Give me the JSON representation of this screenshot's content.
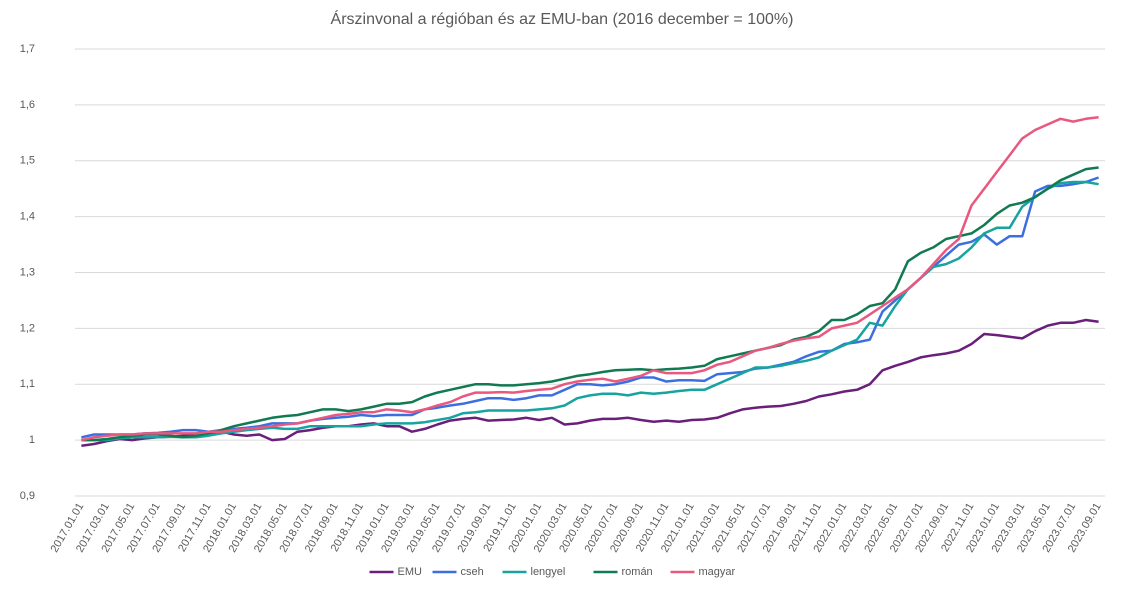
{
  "chart_data": {
    "type": "line",
    "title": "Árszinvonal a régióban és az EMU-ban (2016 december = 100%)",
    "categories": [
      "2017.01.01",
      null,
      "2017.03.01",
      null,
      "2017.05.01",
      null,
      "2017.07.01",
      null,
      "2017.09.01",
      null,
      "2017.11.01",
      null,
      "2018.01.01",
      null,
      "2018.03.01",
      null,
      "2018.05.01",
      null,
      "2018.07.01",
      null,
      "2018.09.01",
      null,
      "2018.11.01",
      null,
      "2019.01.01",
      null,
      "2019.03.01",
      null,
      "2019.05.01",
      null,
      "2019.07.01",
      null,
      "2019.09.01",
      null,
      "2019.11.01",
      null,
      "2020.01.01",
      null,
      "2020.03.01",
      null,
      "2020.05.01",
      null,
      "2020.07.01",
      null,
      "2020.09.01",
      null,
      "2020.11.01",
      null,
      "2021.01.01",
      null,
      "2021.03.01",
      null,
      "2021.05.01",
      null,
      "2021.07.01",
      null,
      "2021.09.01",
      null,
      "2021.11.01",
      null,
      "2022.01.01",
      null,
      "2022.03.01",
      null,
      "2022.05.01",
      null,
      "2022.07.01",
      null,
      "2022.09.01",
      null,
      "2022.11.01",
      null,
      "2023.01.01",
      null,
      "2023.03.01",
      null,
      "2023.05.01",
      null,
      "2023.07.01",
      null,
      "2023.09.01"
    ],
    "series": [
      {
        "name": "EMU",
        "color": "#6a1f7a",
        "values": [
          0.99,
          0.993,
          0.998,
          1.002,
          1.0,
          1.003,
          1.005,
          1.006,
          1.008,
          1.01,
          1.012,
          1.015,
          1.01,
          1.008,
          1.01,
          1.0,
          1.002,
          1.015,
          1.018,
          1.022,
          1.025,
          1.025,
          1.028,
          1.03,
          1.025,
          1.025,
          1.015,
          1.02,
          1.028,
          1.035,
          1.038,
          1.04,
          1.035,
          1.036,
          1.037,
          1.04,
          1.036,
          1.04,
          1.028,
          1.03,
          1.035,
          1.038,
          1.038,
          1.04,
          1.036,
          1.033,
          1.035,
          1.033,
          1.036,
          1.037,
          1.04,
          1.048,
          1.055,
          1.058,
          1.06,
          1.061,
          1.065,
          1.07,
          1.078,
          1.082,
          1.087,
          1.09,
          1.1,
          1.125,
          1.133,
          1.14,
          1.148,
          1.152,
          1.155,
          1.16,
          1.172,
          1.19,
          1.188,
          1.185,
          1.182,
          1.195,
          1.205,
          1.21,
          1.21,
          1.215,
          1.212
        ]
      },
      {
        "name": "cseh",
        "color": "#3b6fe0",
        "values": [
          1.005,
          1.01,
          1.01,
          1.01,
          1.01,
          1.012,
          1.013,
          1.015,
          1.018,
          1.018,
          1.015,
          1.018,
          1.02,
          1.022,
          1.025,
          1.03,
          1.03,
          1.03,
          1.035,
          1.038,
          1.04,
          1.042,
          1.045,
          1.043,
          1.045,
          1.045,
          1.045,
          1.055,
          1.058,
          1.062,
          1.065,
          1.07,
          1.075,
          1.075,
          1.072,
          1.075,
          1.08,
          1.08,
          1.09,
          1.1,
          1.1,
          1.098,
          1.1,
          1.105,
          1.112,
          1.112,
          1.105,
          1.107,
          1.107,
          1.106,
          1.118,
          1.12,
          1.122,
          1.128,
          1.13,
          1.135,
          1.14,
          1.15,
          1.158,
          1.16,
          1.172,
          1.175,
          1.18,
          1.23,
          1.25,
          1.27,
          1.29,
          1.31,
          1.33,
          1.35,
          1.355,
          1.368,
          1.35,
          1.365,
          1.365,
          1.445,
          1.455,
          1.455,
          1.458,
          1.462,
          1.47
        ]
      },
      {
        "name": "lengyel",
        "color": "#17a39f",
        "values": [
          1.0,
          1.0,
          1.0,
          1.003,
          1.005,
          1.005,
          1.005,
          1.006,
          1.005,
          1.005,
          1.008,
          1.012,
          1.015,
          1.018,
          1.02,
          1.022,
          1.02,
          1.02,
          1.025,
          1.025,
          1.025,
          1.025,
          1.025,
          1.028,
          1.03,
          1.03,
          1.03,
          1.032,
          1.036,
          1.04,
          1.048,
          1.05,
          1.053,
          1.053,
          1.053,
          1.053,
          1.055,
          1.057,
          1.062,
          1.075,
          1.08,
          1.083,
          1.083,
          1.08,
          1.085,
          1.083,
          1.085,
          1.088,
          1.09,
          1.09,
          1.1,
          1.11,
          1.12,
          1.13,
          1.13,
          1.133,
          1.138,
          1.142,
          1.148,
          1.16,
          1.17,
          1.18,
          1.21,
          1.205,
          1.24,
          1.27,
          1.29,
          1.31,
          1.315,
          1.325,
          1.345,
          1.37,
          1.38,
          1.38,
          1.418,
          1.435,
          1.45,
          1.46,
          1.462,
          1.462,
          1.458
        ]
      },
      {
        "name": "román",
        "color": "#117a52",
        "values": [
          1.0,
          1.0,
          1.002,
          1.005,
          1.008,
          1.01,
          1.01,
          1.008,
          1.005,
          1.008,
          1.012,
          1.018,
          1.025,
          1.03,
          1.035,
          1.04,
          1.043,
          1.045,
          1.05,
          1.055,
          1.055,
          1.052,
          1.055,
          1.06,
          1.065,
          1.065,
          1.068,
          1.078,
          1.085,
          1.09,
          1.095,
          1.1,
          1.1,
          1.098,
          1.098,
          1.1,
          1.102,
          1.105,
          1.11,
          1.115,
          1.118,
          1.122,
          1.125,
          1.126,
          1.127,
          1.125,
          1.127,
          1.128,
          1.13,
          1.133,
          1.145,
          1.15,
          1.155,
          1.16,
          1.165,
          1.17,
          1.18,
          1.185,
          1.195,
          1.215,
          1.215,
          1.225,
          1.24,
          1.245,
          1.27,
          1.32,
          1.335,
          1.345,
          1.36,
          1.365,
          1.37,
          1.385,
          1.405,
          1.42,
          1.425,
          1.435,
          1.45,
          1.465,
          1.475,
          1.485,
          1.488
        ]
      },
      {
        "name": "magyar",
        "color": "#e8587f",
        "values": [
          1.0,
          1.005,
          1.008,
          1.01,
          1.01,
          1.012,
          1.012,
          1.012,
          1.012,
          1.012,
          1.015,
          1.015,
          1.018,
          1.02,
          1.022,
          1.025,
          1.028,
          1.03,
          1.035,
          1.04,
          1.045,
          1.047,
          1.05,
          1.05,
          1.055,
          1.053,
          1.05,
          1.055,
          1.062,
          1.068,
          1.078,
          1.085,
          1.085,
          1.086,
          1.085,
          1.088,
          1.09,
          1.092,
          1.1,
          1.105,
          1.108,
          1.11,
          1.105,
          1.11,
          1.115,
          1.125,
          1.12,
          1.12,
          1.12,
          1.125,
          1.135,
          1.14,
          1.15,
          1.16,
          1.165,
          1.172,
          1.178,
          1.182,
          1.185,
          1.2,
          1.205,
          1.21,
          1.225,
          1.24,
          1.255,
          1.27,
          1.29,
          1.315,
          1.34,
          1.36,
          1.42,
          1.45,
          1.48,
          1.51,
          1.54,
          1.555,
          1.565,
          1.575,
          1.57,
          1.575,
          1.578
        ]
      }
    ],
    "ylim": [
      0.9,
      1.7
    ],
    "yticks": [
      {
        "value": 0.9,
        "label": "0,9"
      },
      1,
      {
        "value": 1.1,
        "label": "1,1"
      },
      {
        "value": 1.2,
        "label": "1,2"
      },
      {
        "value": 1.3,
        "label": "1,3"
      },
      {
        "value": 1.4,
        "label": "1,4"
      },
      {
        "value": 1.5,
        "label": "1,5"
      },
      {
        "value": 1.6,
        "label": "1,6"
      },
      {
        "value": 1.7,
        "label": "1,7"
      }
    ],
    "grid": true,
    "legend": "bottom"
  }
}
